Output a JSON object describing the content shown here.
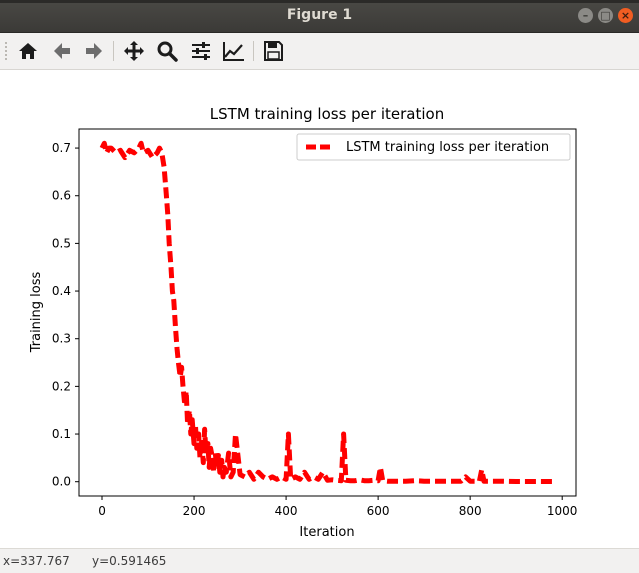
{
  "window": {
    "title": "Figure 1",
    "buttons": [
      "minimize",
      "maximize",
      "close"
    ]
  },
  "toolbar": {
    "tools": [
      {
        "name": "home-icon",
        "tooltip": "Reset original view"
      },
      {
        "name": "back-arrow-icon",
        "tooltip": "Back to previous view"
      },
      {
        "name": "forward-arrow-icon",
        "tooltip": "Forward to next view"
      },
      {
        "name": "pan-icon",
        "tooltip": "Pan axes"
      },
      {
        "name": "zoom-icon",
        "tooltip": "Zoom to rectangle"
      },
      {
        "name": "subplots-icon",
        "tooltip": "Configure subplots"
      },
      {
        "name": "edit-axis-icon",
        "tooltip": "Edit axis, curve and image parameters"
      },
      {
        "name": "save-icon",
        "tooltip": "Save the figure"
      }
    ]
  },
  "status": {
    "x_readout": "x=337.767",
    "y_readout": "y=0.591465"
  },
  "chart_data": {
    "type": "line",
    "title": "LSTM training loss per iteration",
    "xlabel": "Iteration",
    "ylabel": "Training loss",
    "xlim": [
      -50,
      1030
    ],
    "ylim": [
      -0.03,
      0.74
    ],
    "xticks": [
      0,
      200,
      400,
      600,
      800,
      1000
    ],
    "xtick_labels": [
      "0",
      "200",
      "400",
      "600",
      "800",
      "1000"
    ],
    "yticks": [
      0.0,
      0.1,
      0.2,
      0.3,
      0.4,
      0.5,
      0.6,
      0.7
    ],
    "ytick_labels": [
      "0.0",
      "0.1",
      "0.2",
      "0.3",
      "0.4",
      "0.5",
      "0.6",
      "0.7"
    ],
    "grid": false,
    "legend": "top-right",
    "series": [
      {
        "name": "LSTM training loss per iteration",
        "color": "#ff0000",
        "linestyle": "dashed",
        "x": [
          0,
          5,
          10,
          15,
          20,
          30,
          40,
          50,
          60,
          70,
          80,
          85,
          90,
          100,
          110,
          120,
          125,
          130,
          135,
          140,
          143,
          146,
          150,
          153,
          156,
          160,
          163,
          166,
          170,
          173,
          176,
          180,
          183,
          186,
          190,
          193,
          196,
          200,
          203,
          206,
          210,
          213,
          216,
          220,
          223,
          226,
          230,
          233,
          236,
          240,
          243,
          246,
          250,
          253,
          256,
          260,
          263,
          266,
          270,
          275,
          280,
          285,
          290,
          300,
          310,
          320,
          330,
          340,
          350,
          360,
          370,
          380,
          390,
          400,
          405,
          410,
          420,
          430,
          440,
          450,
          460,
          470,
          480,
          490,
          500,
          510,
          520,
          525,
          530,
          540,
          550,
          560,
          570,
          580,
          590,
          600,
          605,
          610,
          620,
          640,
          660,
          680,
          700,
          720,
          740,
          760,
          780,
          790,
          800,
          820,
          825,
          830,
          850,
          870,
          900,
          930,
          960,
          980
        ],
        "y": [
          0.7,
          0.71,
          0.69,
          0.7,
          0.7,
          0.69,
          0.695,
          0.68,
          0.695,
          0.69,
          0.7,
          0.71,
          0.69,
          0.695,
          0.68,
          0.69,
          0.7,
          0.69,
          0.66,
          0.6,
          0.56,
          0.5,
          0.45,
          0.4,
          0.38,
          0.32,
          0.28,
          0.25,
          0.22,
          0.24,
          0.2,
          0.16,
          0.19,
          0.12,
          0.15,
          0.1,
          0.13,
          0.08,
          0.12,
          0.07,
          0.1,
          0.05,
          0.09,
          0.04,
          0.11,
          0.06,
          0.08,
          0.03,
          0.07,
          0.05,
          0.02,
          0.06,
          0.03,
          0.055,
          0.02,
          0.045,
          0.01,
          0.03,
          0.02,
          0.06,
          0.01,
          0.02,
          0.1,
          0.015,
          0.01,
          0.02,
          0.005,
          0.02,
          0.01,
          0.005,
          0.01,
          0.005,
          0.01,
          0.005,
          0.1,
          0.005,
          0.01,
          0.005,
          0.02,
          0.005,
          0.01,
          0.005,
          0.02,
          0.003,
          0.004,
          0.003,
          0.002,
          0.1,
          0.003,
          0.002,
          0.002,
          0.004,
          0.002,
          0.002,
          0.003,
          0.002,
          0.03,
          0.002,
          0.001,
          0.001,
          0.001,
          0.002,
          0.001,
          0.001,
          0.001,
          0.001,
          0.001,
          0.01,
          0.001,
          0.001,
          0.025,
          0.001,
          0.001,
          0.001,
          0.0005,
          0.0005,
          0.0005,
          0.0005
        ]
      }
    ]
  }
}
